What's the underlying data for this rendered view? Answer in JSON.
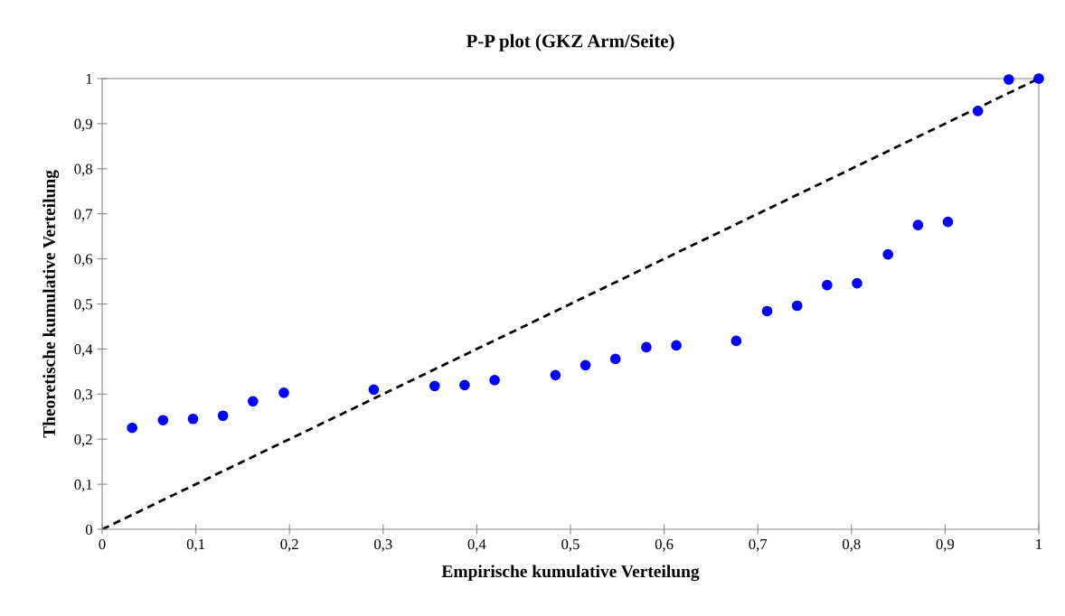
{
  "chart_data": {
    "type": "scatter",
    "title": "P-P plot (GKZ Arm/Seite)",
    "xlabel": "Empirische kumulative Verteilung",
    "ylabel": "Theoretische kumulative Verteilung",
    "xlim": [
      0,
      1
    ],
    "ylim": [
      0,
      1
    ],
    "xticks": [
      {
        "value": 0,
        "label": "0"
      },
      {
        "value": 0.1,
        "label": "0,1"
      },
      {
        "value": 0.2,
        "label": "0,2"
      },
      {
        "value": 0.3,
        "label": "0,3"
      },
      {
        "value": 0.4,
        "label": "0,4"
      },
      {
        "value": 0.5,
        "label": "0,5"
      },
      {
        "value": 0.6,
        "label": "0,6"
      },
      {
        "value": 0.7,
        "label": "0,7"
      },
      {
        "value": 0.8,
        "label": "0,8"
      },
      {
        "value": 0.9,
        "label": "0,9"
      },
      {
        "value": 1,
        "label": "1"
      }
    ],
    "yticks": [
      {
        "value": 0,
        "label": "0"
      },
      {
        "value": 0.1,
        "label": "0,1"
      },
      {
        "value": 0.2,
        "label": "0,2"
      },
      {
        "value": 0.3,
        "label": "0,3"
      },
      {
        "value": 0.4,
        "label": "0,4"
      },
      {
        "value": 0.5,
        "label": "0,5"
      },
      {
        "value": 0.6,
        "label": "0,6"
      },
      {
        "value": 0.7,
        "label": "0,7"
      },
      {
        "value": 0.8,
        "label": "0,8"
      },
      {
        "value": 0.9,
        "label": "0,9"
      },
      {
        "value": 1,
        "label": "1"
      }
    ],
    "grid": false,
    "legend": false,
    "marker": "circle",
    "series": [
      {
        "color": "#0000ff",
        "x": [
          0.032,
          0.065,
          0.097,
          0.129,
          0.161,
          0.194,
          0.29,
          0.355,
          0.387,
          0.419,
          0.484,
          0.516,
          0.548,
          0.581,
          0.613,
          0.677,
          0.71,
          0.742,
          0.774,
          0.806,
          0.839,
          0.871,
          0.903,
          0.935,
          0.968,
          1.0
        ],
        "values": [
          0.225,
          0.242,
          0.245,
          0.252,
          0.284,
          0.303,
          0.31,
          0.318,
          0.32,
          0.331,
          0.342,
          0.364,
          0.378,
          0.404,
          0.408,
          0.418,
          0.484,
          0.496,
          0.542,
          0.546,
          0.61,
          0.675,
          0.682,
          0.928,
          0.998,
          1.0
        ]
      },
      {
        "type": "line",
        "color": "#000000",
        "line_style": "dashed",
        "marker": "none",
        "x": [
          0,
          1
        ],
        "values": [
          0,
          1
        ]
      }
    ]
  }
}
